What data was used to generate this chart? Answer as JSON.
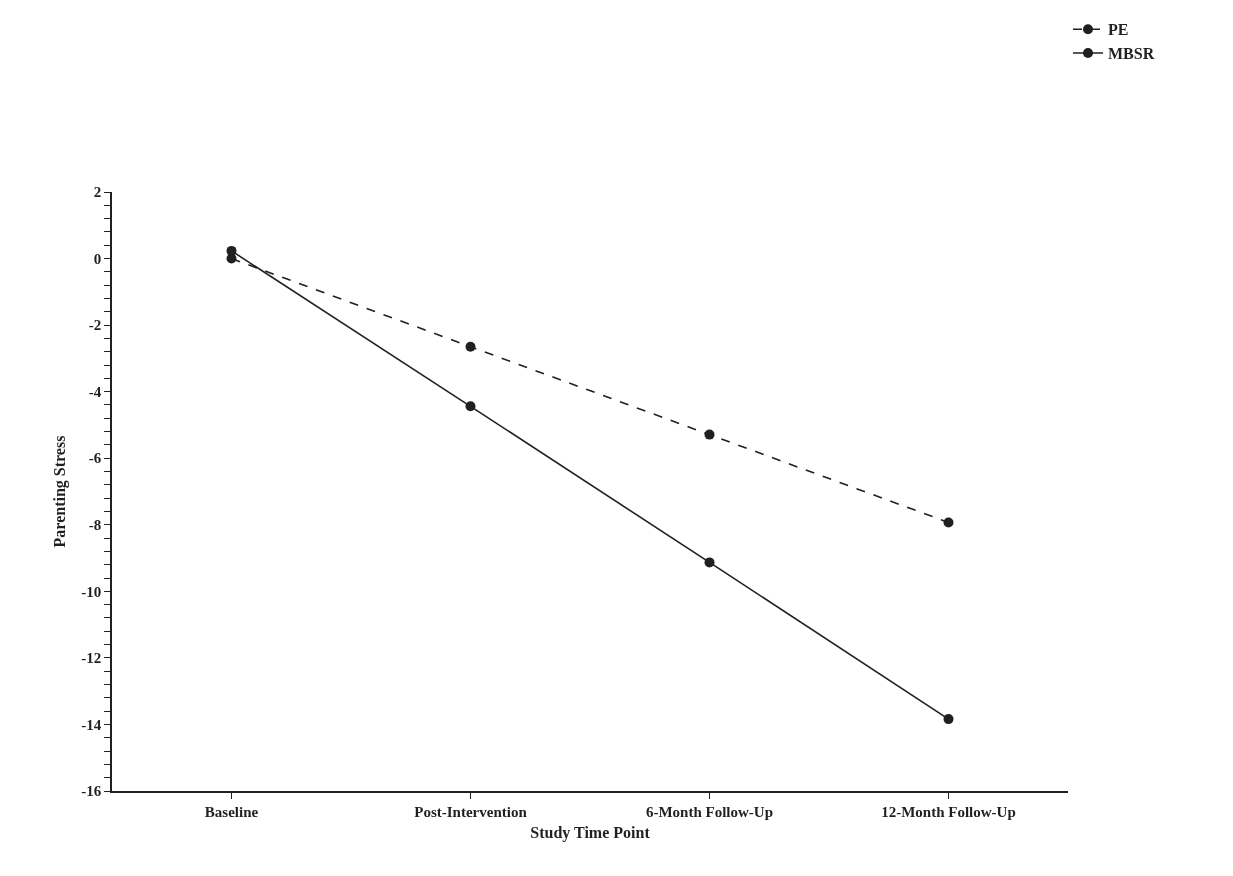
{
  "chart_data": {
    "type": "line",
    "xlabel": "Study Time Point",
    "ylabel": "Parenting Stress",
    "categories": [
      "Baseline",
      "Post-Intervention",
      "6-Month Follow-Up",
      "12-Month Follow-Up"
    ],
    "series": [
      {
        "name": "PE",
        "color": "#231f20",
        "values": [
          0,
          -2.65,
          -5.29,
          -7.93
        ],
        "line_style": "dashed"
      },
      {
        "name": "MBSR",
        "color": "#231f20",
        "values": [
          0.23,
          -4.44,
          -9.13,
          -13.84
        ],
        "line_style": "solid"
      }
    ],
    "ylim": [
      -16,
      2
    ],
    "yticks": [
      -16,
      {
        "value": -15.6,
        "label": null
      },
      {
        "value": -15.2,
        "label": null
      },
      {
        "value": -14.8,
        "label": null
      },
      {
        "value": -14.4,
        "label": null
      },
      -14,
      {
        "value": -13.6,
        "label": null
      },
      {
        "value": -13.2,
        "label": null
      },
      {
        "value": -12.8,
        "label": null
      },
      {
        "value": -12.4,
        "label": null
      },
      -12,
      {
        "value": -11.6,
        "label": null
      },
      {
        "value": -11.2,
        "label": null
      },
      {
        "value": -10.8,
        "label": null
      },
      {
        "value": -10.4,
        "label": null
      },
      -10,
      {
        "value": -9.6,
        "label": null
      },
      {
        "value": -9.2,
        "label": null
      },
      {
        "value": -8.8,
        "label": null
      },
      {
        "value": -8.4,
        "label": null
      },
      -8,
      {
        "value": -7.6,
        "label": null
      },
      {
        "value": -7.2,
        "label": null
      },
      {
        "value": -6.8,
        "label": null
      },
      {
        "value": -6.4,
        "label": null
      },
      -6,
      {
        "value": -5.6,
        "label": null
      },
      {
        "value": -5.2,
        "label": null
      },
      {
        "value": -4.8,
        "label": null
      },
      {
        "value": -4.4,
        "label": null
      },
      -4,
      {
        "value": -3.6,
        "label": null
      },
      {
        "value": -3.2,
        "label": null
      },
      {
        "value": -2.8,
        "label": null
      },
      {
        "value": -2.4,
        "label": null
      },
      -2,
      {
        "value": -1.6,
        "label": null
      },
      {
        "value": -1.2,
        "label": null
      },
      {
        "value": -0.8,
        "label": null
      },
      {
        "value": -0.4,
        "label": null
      },
      0,
      {
        "value": 0.4,
        "label": null
      },
      {
        "value": 0.8,
        "label": null
      },
      {
        "value": 1.2,
        "label": null
      },
      {
        "value": 1.6,
        "label": null
      },
      2
    ],
    "grid": false,
    "legend": "top right",
    "marker": "circle"
  }
}
